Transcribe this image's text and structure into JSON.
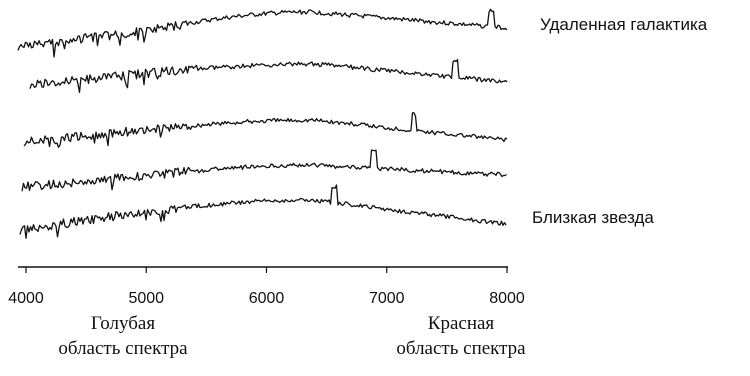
{
  "chart_data": {
    "type": "line",
    "title": "",
    "xlabel": "",
    "ylabel": "",
    "xlim": [
      3900,
      8000
    ],
    "x_ticks": [
      4000,
      5000,
      6000,
      7000,
      8000
    ],
    "x_tick_labels": [
      "4000",
      "5000",
      "6000",
      "7000",
      "8000"
    ],
    "grid": false,
    "series_count": 5,
    "series_order": "top-to-bottom",
    "series_labels": {
      "top": "Удаленная галактика",
      "bottom": "Близкая звезда"
    },
    "emission_line_x": [
      7870,
      7570,
      7230,
      6890,
      6563
    ],
    "region_labels": {
      "left_line1": "Голубая",
      "left_line2": "область спектра",
      "right_line1": "Красная",
      "right_line2": "область спектра"
    }
  }
}
